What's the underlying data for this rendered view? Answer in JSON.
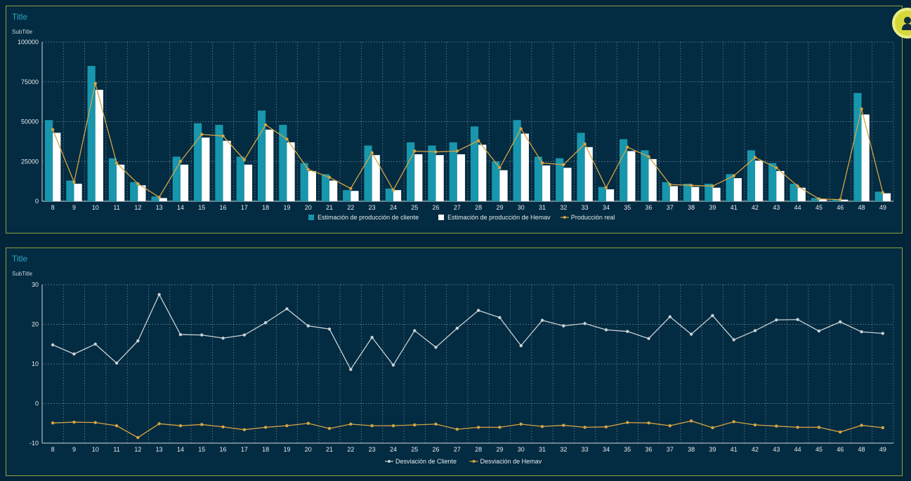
{
  "charts": [
    {
      "title": "Title",
      "subtitle": "SubTitle",
      "legend": [
        {
          "label": "Estimación de producción de cliente",
          "color": "#1796ad",
          "kind": "bar"
        },
        {
          "label": "Estimación de producción de Hemav",
          "color": "#ffffff",
          "kind": "bar"
        },
        {
          "label": "Producción real",
          "color": "#d6a443",
          "kind": "line"
        }
      ]
    },
    {
      "title": "Title",
      "subtitle": "SubTitle",
      "legend": [
        {
          "label": "Desviación de Cliente",
          "color": "#c9d2d6",
          "kind": "line"
        },
        {
          "label": "Desviación de Hemav",
          "color": "#d6a443",
          "kind": "line"
        }
      ]
    }
  ],
  "chart_data": [
    {
      "type": "bar",
      "title": "Title",
      "subtitle": "SubTitle",
      "categories": [
        "8",
        "9",
        "10",
        "11",
        "12",
        "13",
        "14",
        "15",
        "16",
        "17",
        "18",
        "19",
        "20",
        "21",
        "22",
        "23",
        "24",
        "25",
        "26",
        "27",
        "28",
        "29",
        "30",
        "31",
        "32",
        "33",
        "34",
        "35",
        "36",
        "37",
        "38",
        "39",
        "41",
        "42",
        "43",
        "44",
        "45",
        "46",
        "48",
        "49"
      ],
      "ylim": [
        0,
        100000
      ],
      "yticks": [
        0,
        25000,
        50000,
        75000,
        100000
      ],
      "grid": true,
      "legend_position": "bottom",
      "series": [
        {
          "name": "Estimación de producción de cliente",
          "type": "bar",
          "color": "#1796ad",
          "values": [
            51000,
            13000,
            85000,
            27000,
            12000,
            3000,
            28000,
            49000,
            48000,
            28000,
            57000,
            48000,
            24000,
            17000,
            7000,
            35000,
            8000,
            37000,
            35000,
            37000,
            47000,
            25000,
            51000,
            28000,
            27000,
            43000,
            9000,
            39000,
            32000,
            12000,
            11000,
            11000,
            17000,
            32000,
            24000,
            11000,
            2000,
            1000,
            68000,
            6000
          ]
        },
        {
          "name": "Estimación de producción de Hemav",
          "type": "bar",
          "color": "#ffffff",
          "values": [
            43000,
            11000,
            70000,
            23000,
            10000,
            2000,
            23000,
            40000,
            38000,
            23000,
            45000,
            37000,
            19000,
            13000,
            6500,
            29000,
            7000,
            29500,
            29000,
            29500,
            35500,
            19500,
            42500,
            22500,
            21000,
            34000,
            7500,
            31500,
            26500,
            9500,
            9000,
            8500,
            14500,
            25500,
            19000,
            8500,
            1500,
            1000,
            54500,
            5000
          ]
        },
        {
          "name": "Producción real",
          "type": "line",
          "color": "#d6a443",
          "values": [
            45000,
            12000,
            74000,
            24000,
            11000,
            2500,
            25000,
            42000,
            41000,
            26000,
            48000,
            39000,
            20000,
            15000,
            8000,
            30500,
            7000,
            31500,
            31000,
            31500,
            38000,
            21000,
            45500,
            24000,
            23000,
            36000,
            8500,
            34000,
            28000,
            10500,
            10000,
            9500,
            16000,
            27500,
            21000,
            9500,
            1500,
            1000,
            58000,
            5500
          ]
        }
      ]
    },
    {
      "type": "line",
      "title": "Title",
      "subtitle": "SubTitle",
      "categories": [
        "8",
        "9",
        "10",
        "11",
        "12",
        "13",
        "14",
        "15",
        "16",
        "17",
        "18",
        "19",
        "20",
        "21",
        "22",
        "23",
        "24",
        "25",
        "26",
        "27",
        "28",
        "29",
        "30",
        "31",
        "32",
        "33",
        "34",
        "35",
        "36",
        "37",
        "38",
        "39",
        "41",
        "42",
        "43",
        "44",
        "45",
        "46",
        "48",
        "49"
      ],
      "ylim": [
        -10,
        30
      ],
      "yticks": [
        -10,
        0,
        10,
        20,
        30
      ],
      "grid": true,
      "legend_position": "bottom",
      "series": [
        {
          "name": "Desviación de Cliente",
          "color": "#c9d2d6",
          "values": [
            14.8,
            12.5,
            15.0,
            10.2,
            15.8,
            27.5,
            17.4,
            17.3,
            16.5,
            17.3,
            20.4,
            23.9,
            19.6,
            18.8,
            8.6,
            16.7,
            9.7,
            18.4,
            14.2,
            19.0,
            23.5,
            21.7,
            14.6,
            21.0,
            19.6,
            20.2,
            18.6,
            18.2,
            16.4,
            21.9,
            17.5,
            22.2,
            16.1,
            18.4,
            21.1,
            21.2,
            18.3,
            20.6,
            18.1,
            17.7
          ]
        },
        {
          "name": "Desviación de Hemav",
          "color": "#d6a443",
          "values": [
            -4.9,
            -4.7,
            -4.8,
            -5.6,
            -8.6,
            -5.1,
            -5.6,
            -5.3,
            -5.9,
            -6.6,
            -6.0,
            -5.6,
            -5.0,
            -6.3,
            -5.2,
            -5.6,
            -5.6,
            -5.4,
            -5.2,
            -6.5,
            -6.0,
            -6.0,
            -5.2,
            -5.8,
            -5.5,
            -6.0,
            -5.9,
            -4.8,
            -4.9,
            -5.6,
            -4.4,
            -6.1,
            -4.6,
            -5.4,
            -5.7,
            -6.0,
            -6.0,
            -7.2,
            -5.5,
            -6.1
          ]
        }
      ]
    }
  ]
}
